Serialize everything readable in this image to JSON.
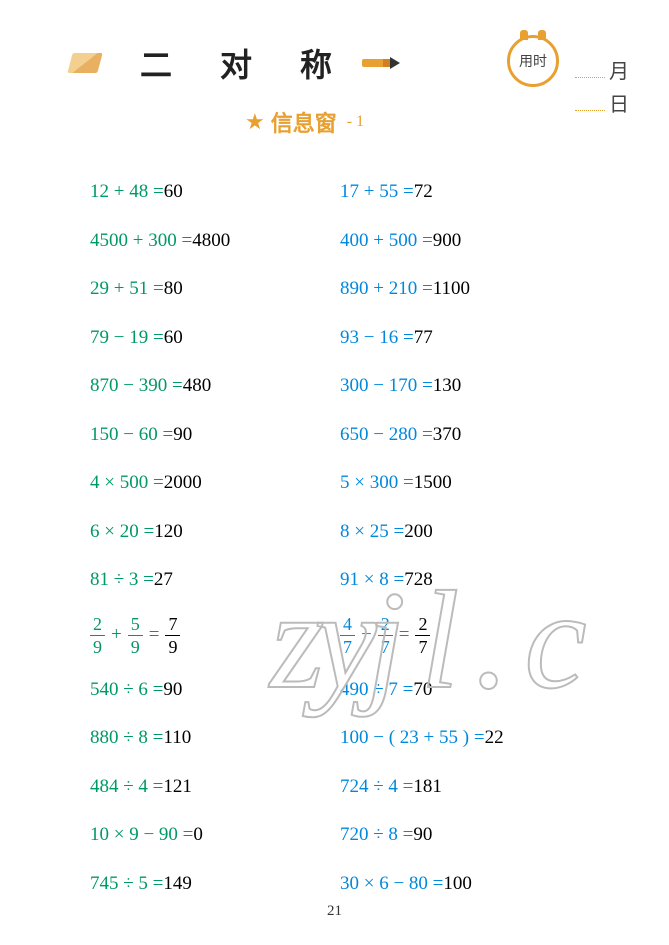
{
  "header": {
    "title": "二 对 称",
    "clock_label": "用时",
    "month_label": "月",
    "day_label": "日",
    "subtitle": "信息窗",
    "subtitle_suffix": "- 1"
  },
  "colors": {
    "green": "#009966",
    "blue": "#0088dd",
    "accent": "#e8a030",
    "answer": "#000000"
  },
  "problems": [
    {
      "col": "left",
      "color": "green",
      "expr_parts": [
        "12",
        " + ",
        "48",
        " = "
      ],
      "answer": "60"
    },
    {
      "col": "right",
      "color": "blue",
      "expr_parts": [
        "17",
        " + ",
        "55",
        " = "
      ],
      "answer": "72"
    },
    {
      "col": "left",
      "color": "green",
      "expr_parts": [
        "4500",
        " + ",
        "300",
        " = "
      ],
      "answer": "4800"
    },
    {
      "col": "right",
      "color": "blue",
      "expr_parts": [
        "400",
        " + ",
        "500",
        " = "
      ],
      "answer": "900"
    },
    {
      "col": "left",
      "color": "green",
      "expr_parts": [
        "29",
        " + ",
        "51",
        " = "
      ],
      "answer": "80"
    },
    {
      "col": "right",
      "color": "blue",
      "expr_parts": [
        "890",
        " + ",
        "210",
        " = "
      ],
      "answer": "1100"
    },
    {
      "col": "left",
      "color": "green",
      "expr_parts": [
        "79",
        " − ",
        "19",
        " = "
      ],
      "answer": "60"
    },
    {
      "col": "right",
      "color": "blue",
      "expr_parts": [
        "93",
        " − ",
        "16",
        " = "
      ],
      "answer": "77"
    },
    {
      "col": "left",
      "color": "green",
      "expr_parts": [
        "870",
        " − ",
        "390",
        " = "
      ],
      "answer": "480"
    },
    {
      "col": "right",
      "color": "blue",
      "expr_parts": [
        "300",
        " − ",
        "170",
        " = "
      ],
      "answer": "130"
    },
    {
      "col": "left",
      "color": "green",
      "expr_parts": [
        "150",
        " − ",
        "60",
        " = "
      ],
      "answer": "90"
    },
    {
      "col": "right",
      "color": "blue",
      "expr_parts": [
        "650",
        " − ",
        "280",
        " = "
      ],
      "answer": "370"
    },
    {
      "col": "left",
      "color": "green",
      "expr_parts": [
        "4",
        " × ",
        "500",
        " = "
      ],
      "answer": "2000"
    },
    {
      "col": "right",
      "color": "blue",
      "expr_parts": [
        "5",
        " × ",
        "300",
        " = "
      ],
      "answer": "1500"
    },
    {
      "col": "left",
      "color": "green",
      "expr_parts": [
        "6",
        " × ",
        "20",
        " = "
      ],
      "answer": "120"
    },
    {
      "col": "right",
      "color": "blue",
      "expr_parts": [
        "8",
        " × ",
        "25",
        " = "
      ],
      "answer": "200"
    },
    {
      "col": "left",
      "color": "green",
      "expr_parts": [
        "81",
        " ÷ ",
        "3",
        " = "
      ],
      "answer": "27"
    },
    {
      "col": "right",
      "color": "blue",
      "expr_parts": [
        "91",
        " × ",
        "8",
        " = "
      ],
      "answer": "728"
    },
    {
      "col": "left",
      "color": "green",
      "type": "fraction",
      "f1": {
        "n": "2",
        "d": "9"
      },
      "op": "+",
      "f2": {
        "n": "5",
        "d": "9"
      },
      "ans": {
        "n": "7",
        "d": "9"
      }
    },
    {
      "col": "right",
      "color": "blue",
      "type": "fraction",
      "f1": {
        "n": "4",
        "d": "7"
      },
      "op": "−",
      "f2": {
        "n": "2",
        "d": "7"
      },
      "ans": {
        "n": "2",
        "d": "7"
      }
    },
    {
      "col": "left",
      "color": "green",
      "expr_parts": [
        "540",
        " ÷ ",
        "6",
        " = "
      ],
      "answer": "90"
    },
    {
      "col": "right",
      "color": "blue",
      "expr_parts": [
        "490",
        " ÷ ",
        "7",
        " = "
      ],
      "answer": "70"
    },
    {
      "col": "left",
      "color": "green",
      "expr_parts": [
        "880",
        " ÷ ",
        "8",
        " = "
      ],
      "answer": "110"
    },
    {
      "col": "right",
      "color": "blue",
      "expr_parts": [
        "100",
        " − ( ",
        "23",
        " + ",
        "55",
        " ) = "
      ],
      "answer": "22"
    },
    {
      "col": "left",
      "color": "green",
      "expr_parts": [
        "484",
        " ÷ ",
        "4",
        " = "
      ],
      "answer": "121"
    },
    {
      "col": "right",
      "color": "blue",
      "expr_parts": [
        "724",
        " ÷ ",
        "4",
        " = "
      ],
      "answer": "181"
    },
    {
      "col": "left",
      "color": "green",
      "expr_parts": [
        "10",
        " × ",
        "9",
        " − ",
        "90",
        " = "
      ],
      "answer": "0"
    },
    {
      "col": "right",
      "color": "blue",
      "expr_parts": [
        "720",
        " ÷ ",
        "8",
        " = "
      ],
      "answer": "90"
    },
    {
      "col": "left",
      "color": "green",
      "expr_parts": [
        "745",
        " ÷ ",
        "5",
        " = "
      ],
      "answer": "149"
    },
    {
      "col": "right",
      "color": "blue",
      "expr_parts": [
        "30",
        " × ",
        "6",
        " − ",
        "80",
        " = "
      ],
      "answer": "100"
    }
  ],
  "watermark": "zyj l . c",
  "page_number": "21"
}
